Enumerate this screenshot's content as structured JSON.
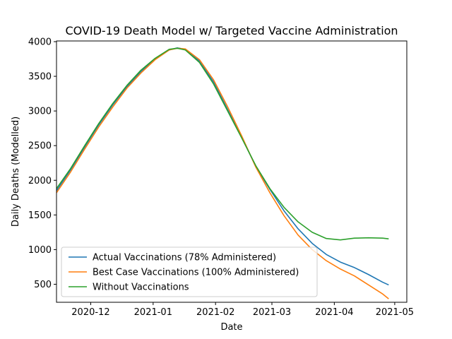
{
  "chart_data": {
    "type": "line",
    "title": "COVID-19 Death Model w/ Targeted Vaccine Administration",
    "xlabel": "Date",
    "ylabel": "Daily Deaths (Modelled)",
    "x_axis_type": "date",
    "xlim": [
      "2020-11-14",
      "2021-05-07"
    ],
    "ylim": [
      240,
      4010
    ],
    "x_ticks": [
      "2020-12-01",
      "2021-01-01",
      "2021-02-01",
      "2021-03-01",
      "2021-04-01",
      "2021-05-01"
    ],
    "x_tick_labels": [
      "2020-12",
      "2021-01",
      "2021-02",
      "2021-03",
      "2021-04",
      "2021-05"
    ],
    "y_ticks": [
      500,
      1000,
      1500,
      2000,
      2500,
      3000,
      3500,
      4000
    ],
    "y_tick_labels": [
      "500",
      "1000",
      "1500",
      "2000",
      "2500",
      "3000",
      "3500",
      "4000"
    ],
    "grid": false,
    "legend_position": "lower-left",
    "series": [
      {
        "name": "Actual Vaccinations (78% Administered)",
        "color": "#1f77b4",
        "points": [
          [
            "2020-11-14",
            1850
          ],
          [
            "2020-11-21",
            2150
          ],
          [
            "2020-11-28",
            2480
          ],
          [
            "2020-12-05",
            2800
          ],
          [
            "2020-12-12",
            3090
          ],
          [
            "2020-12-19",
            3350
          ],
          [
            "2020-12-26",
            3570
          ],
          [
            "2021-01-02",
            3750
          ],
          [
            "2021-01-09",
            3880
          ],
          [
            "2021-01-13",
            3910
          ],
          [
            "2021-01-17",
            3890
          ],
          [
            "2021-01-24",
            3720
          ],
          [
            "2021-01-31",
            3420
          ],
          [
            "2021-02-07",
            3020
          ],
          [
            "2021-02-14",
            2620
          ],
          [
            "2021-02-21",
            2200
          ],
          [
            "2021-02-28",
            1870
          ],
          [
            "2021-03-07",
            1560
          ],
          [
            "2021-03-14",
            1300
          ],
          [
            "2021-03-21",
            1090
          ],
          [
            "2021-03-28",
            930
          ],
          [
            "2021-04-04",
            820
          ],
          [
            "2021-04-11",
            740
          ],
          [
            "2021-04-18",
            640
          ],
          [
            "2021-04-25",
            530
          ],
          [
            "2021-04-28",
            490
          ]
        ]
      },
      {
        "name": "Best Case Vaccinations (100% Administered)",
        "color": "#ff7f0e",
        "points": [
          [
            "2020-11-14",
            1820
          ],
          [
            "2020-11-21",
            2120
          ],
          [
            "2020-11-28",
            2450
          ],
          [
            "2020-12-05",
            2770
          ],
          [
            "2020-12-12",
            3060
          ],
          [
            "2020-12-19",
            3330
          ],
          [
            "2020-12-26",
            3550
          ],
          [
            "2021-01-02",
            3740
          ],
          [
            "2021-01-09",
            3880
          ],
          [
            "2021-01-13",
            3905
          ],
          [
            "2021-01-17",
            3895
          ],
          [
            "2021-01-24",
            3740
          ],
          [
            "2021-01-31",
            3450
          ],
          [
            "2021-02-07",
            3060
          ],
          [
            "2021-02-14",
            2640
          ],
          [
            "2021-02-21",
            2190
          ],
          [
            "2021-02-28",
            1820
          ],
          [
            "2021-03-07",
            1490
          ],
          [
            "2021-03-14",
            1210
          ],
          [
            "2021-03-21",
            1000
          ],
          [
            "2021-03-28",
            840
          ],
          [
            "2021-04-04",
            720
          ],
          [
            "2021-04-11",
            620
          ],
          [
            "2021-04-18",
            490
          ],
          [
            "2021-04-25",
            360
          ],
          [
            "2021-04-28",
            290
          ]
        ]
      },
      {
        "name": "Without Vaccinations",
        "color": "#2ca02c",
        "points": [
          [
            "2020-11-14",
            1880
          ],
          [
            "2020-11-21",
            2170
          ],
          [
            "2020-11-28",
            2500
          ],
          [
            "2020-12-05",
            2820
          ],
          [
            "2020-12-12",
            3110
          ],
          [
            "2020-12-19",
            3370
          ],
          [
            "2020-12-26",
            3590
          ],
          [
            "2021-01-02",
            3760
          ],
          [
            "2021-01-09",
            3890
          ],
          [
            "2021-01-13",
            3905
          ],
          [
            "2021-01-17",
            3880
          ],
          [
            "2021-01-24",
            3700
          ],
          [
            "2021-01-31",
            3390
          ],
          [
            "2021-02-07",
            3000
          ],
          [
            "2021-02-14",
            2610
          ],
          [
            "2021-02-21",
            2210
          ],
          [
            "2021-02-28",
            1880
          ],
          [
            "2021-03-07",
            1610
          ],
          [
            "2021-03-14",
            1400
          ],
          [
            "2021-03-21",
            1250
          ],
          [
            "2021-03-28",
            1160
          ],
          [
            "2021-04-04",
            1140
          ],
          [
            "2021-04-11",
            1165
          ],
          [
            "2021-04-18",
            1170
          ],
          [
            "2021-04-25",
            1165
          ],
          [
            "2021-04-28",
            1155
          ]
        ]
      }
    ]
  }
}
